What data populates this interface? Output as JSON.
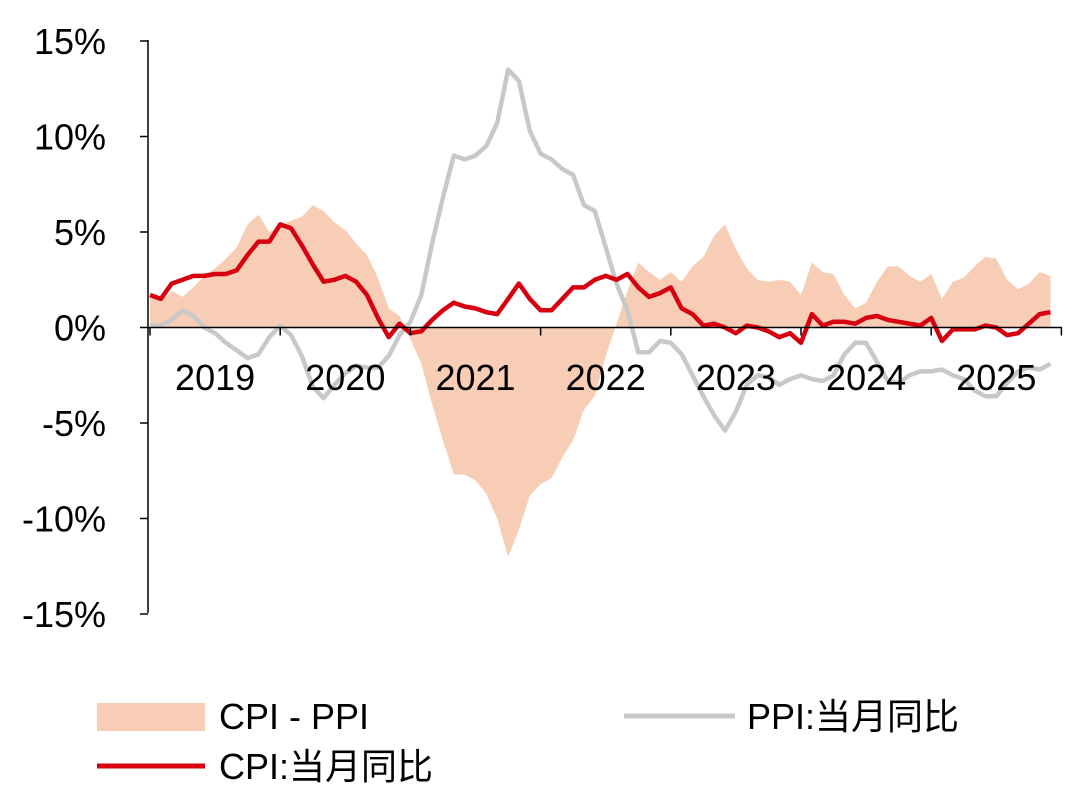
{
  "chart_data": {
    "type": "area+line",
    "title": "",
    "xlabel": "",
    "ylabel": "",
    "ylim": [
      -15,
      15
    ],
    "y_ticks": [
      15,
      10,
      5,
      0,
      -5,
      -10,
      -15
    ],
    "y_tick_labels": [
      "15%",
      "10%",
      "5%",
      "0%",
      "-5%",
      "-10%",
      "-15%"
    ],
    "x_tick_labels": [
      "2019",
      "2020",
      "2021",
      "2022",
      "2023",
      "2024",
      "2025"
    ],
    "x_start": "2019-01",
    "points_per_year": 12,
    "legend": {
      "spread": "CPI - PPI",
      "ppi": "PPI:当月同比",
      "cpi": "CPI:当月同比"
    },
    "colors": {
      "spread": "#f8cdb6",
      "ppi": "#c8c8c8",
      "cpi": "#d7000f",
      "axis": "#000000"
    },
    "series": [
      {
        "name": "CPI:当月同比",
        "values": [
          1.7,
          1.5,
          2.3,
          2.5,
          2.7,
          2.7,
          2.8,
          2.8,
          3.0,
          3.8,
          4.5,
          4.5,
          5.4,
          5.2,
          4.3,
          3.3,
          2.4,
          2.5,
          2.7,
          2.4,
          1.7,
          0.5,
          -0.5,
          0.2,
          -0.3,
          -0.2,
          0.4,
          0.9,
          1.3,
          1.1,
          1.0,
          0.8,
          0.7,
          1.5,
          2.3,
          1.5,
          0.9,
          0.9,
          1.5,
          2.1,
          2.1,
          2.5,
          2.7,
          2.5,
          2.8,
          2.1,
          1.6,
          1.8,
          2.1,
          1.0,
          0.7,
          0.1,
          0.2,
          0.0,
          -0.3,
          0.1,
          0.0,
          -0.2,
          -0.5,
          -0.3,
          -0.8,
          0.7,
          0.1,
          0.3,
          0.3,
          0.2,
          0.5,
          0.6,
          0.4,
          0.3,
          0.2,
          0.1,
          0.5,
          -0.7,
          -0.1,
          -0.1,
          -0.1,
          0.1,
          0.0,
          -0.4,
          -0.3,
          0.2,
          0.7,
          0.8
        ]
      },
      {
        "name": "PPI:当月同比",
        "values": [
          0.1,
          0.1,
          0.4,
          0.9,
          0.6,
          0.0,
          -0.3,
          -0.8,
          -1.2,
          -1.6,
          -1.4,
          -0.5,
          0.1,
          -0.4,
          -1.5,
          -3.1,
          -3.7,
          -3.0,
          -2.4,
          -2.0,
          -2.1,
          -2.1,
          -1.5,
          -0.4,
          0.3,
          1.7,
          4.4,
          6.8,
          9.0,
          8.8,
          9.0,
          9.5,
          10.7,
          13.5,
          12.9,
          10.3,
          9.1,
          8.8,
          8.3,
          8.0,
          6.4,
          6.1,
          4.2,
          2.3,
          0.9,
          -1.3,
          -1.3,
          -0.7,
          -0.8,
          -1.4,
          -2.5,
          -3.6,
          -4.6,
          -5.4,
          -4.4,
          -3.0,
          -2.5,
          -2.6,
          -3.0,
          -2.7,
          -2.5,
          -2.7,
          -2.8,
          -2.5,
          -1.4,
          -0.8,
          -0.8,
          -1.8,
          -2.8,
          -2.9,
          -2.5,
          -2.3,
          -2.3,
          -2.2,
          -2.5,
          -2.7,
          -3.3,
          -3.6,
          -3.6,
          -2.9,
          -2.3,
          -2.1,
          -2.2,
          -1.9
        ]
      }
    ]
  }
}
